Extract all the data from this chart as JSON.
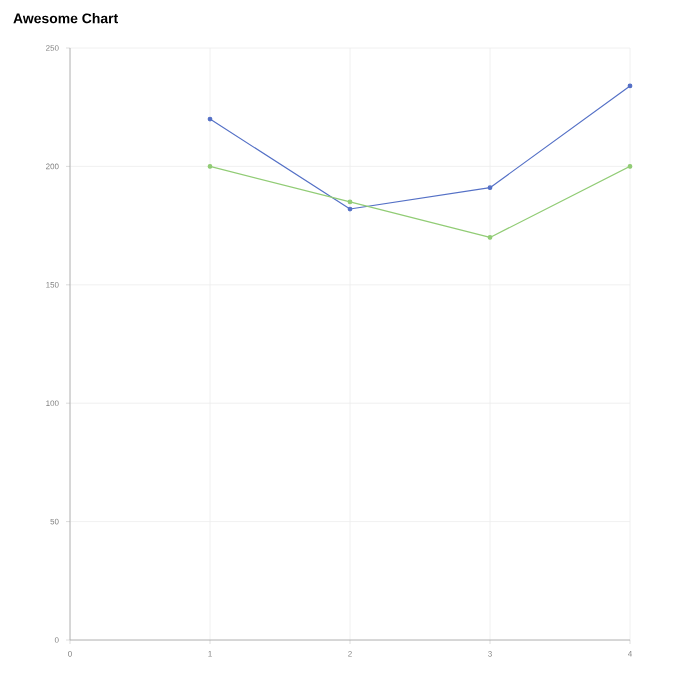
{
  "chart_data": {
    "type": "line",
    "title": "Awesome Chart",
    "x": [
      1,
      2,
      3,
      4
    ],
    "series": [
      {
        "color": "#5470c6",
        "values": [
          220,
          182,
          191,
          234
        ]
      },
      {
        "color": "#91cc75",
        "values": [
          200,
          185,
          170,
          200
        ]
      }
    ],
    "xlim": [
      0,
      4
    ],
    "xticks": [
      0,
      1,
      2,
      3,
      4
    ],
    "ylim": [
      0,
      250
    ],
    "yticks": [
      0,
      50,
      100,
      150,
      200,
      250
    ],
    "grid": true,
    "marker": "circle",
    "line_style": "solid"
  }
}
